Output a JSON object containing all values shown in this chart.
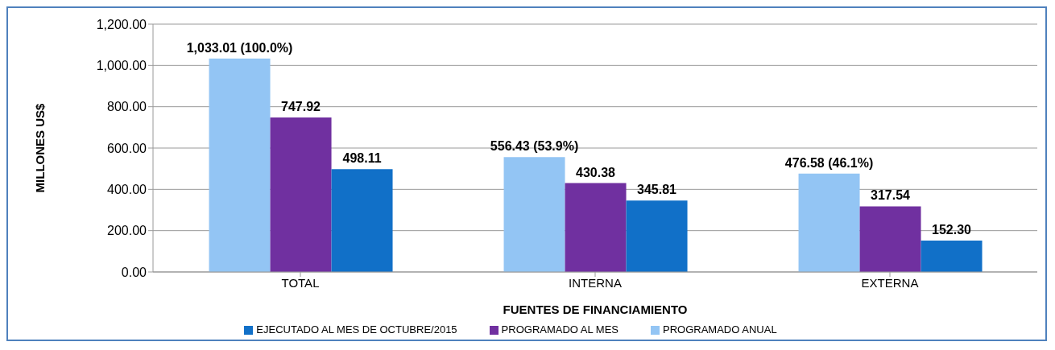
{
  "chart_data": {
    "type": "bar",
    "xlabel": "FUENTES DE FINANCIAMIENTO",
    "ylabel": "MILLONES US$",
    "categories": [
      "TOTAL",
      "INTERNA",
      "EXTERNA"
    ],
    "series": [
      {
        "name": "PROGRAMADO ANUAL",
        "color": "#93c5f4",
        "values": [
          1033.01,
          556.43,
          476.58
        ],
        "value_labels": [
          "1,033.01 (100.0%)",
          "556.43 (53.9%)",
          "476.58 (46.1%)"
        ]
      },
      {
        "name": "PROGRAMADO AL MES",
        "color": "#7030a0",
        "values": [
          747.92,
          430.38,
          317.54
        ],
        "value_labels": [
          "747.92",
          "430.38",
          "317.54"
        ]
      },
      {
        "name": "EJECUTADO AL MES DE OCTUBRE/2015",
        "color": "#1170c8",
        "values": [
          498.11,
          345.81,
          152.3
        ],
        "value_labels": [
          "498.11",
          "345.81",
          "152.30"
        ]
      }
    ],
    "ylim": [
      0,
      1200
    ],
    "yticks": [
      {
        "value": 0,
        "label": "0.00"
      },
      {
        "value": 200,
        "label": "200.00"
      },
      {
        "value": 400,
        "label": "400.00"
      },
      {
        "value": 600,
        "label": "600.00"
      },
      {
        "value": 800,
        "label": "800.00"
      },
      {
        "value": 1000,
        "label": "1,000.00"
      },
      {
        "value": 1200,
        "label": "1,200.00"
      }
    ],
    "grid": "y",
    "legend": "bottom"
  }
}
